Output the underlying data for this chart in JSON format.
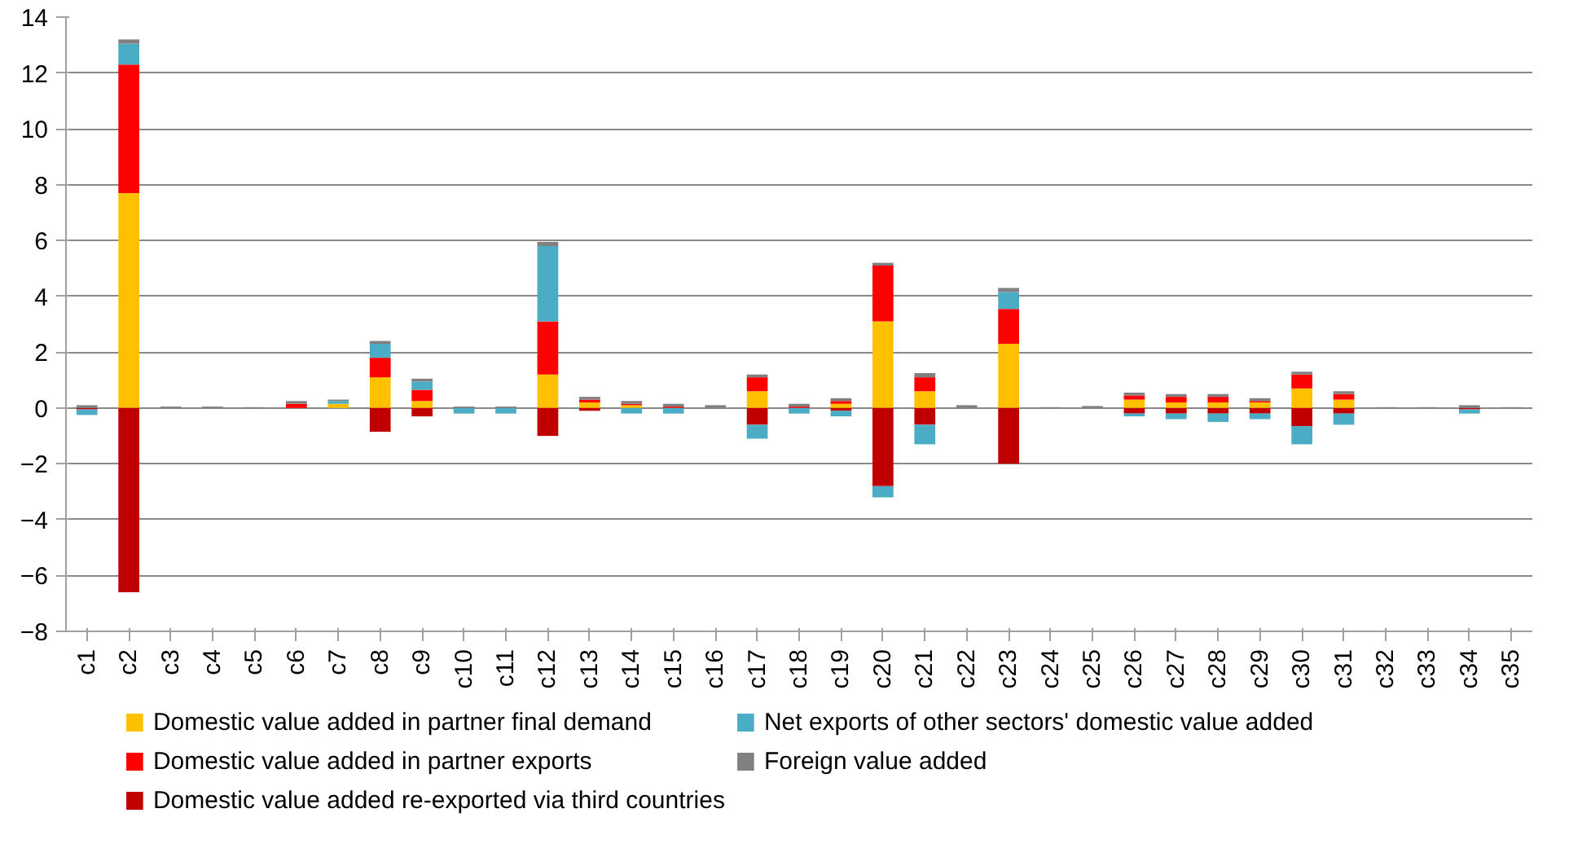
{
  "chart_data": {
    "type": "bar",
    "stacked": true,
    "grid": "y",
    "legend": "bottom",
    "ylim": [
      -8,
      14
    ],
    "yticks": [
      -8,
      -6,
      -4,
      -2,
      0,
      2,
      4,
      6,
      8,
      10,
      12,
      14
    ],
    "categories": [
      "c1",
      "c2",
      "c3",
      "c4",
      "c5",
      "c6",
      "c7",
      "c8",
      "c9",
      "c10",
      "c11",
      "c12",
      "c13",
      "c14",
      "c15",
      "c16",
      "c17",
      "c18",
      "c19",
      "c20",
      "c21",
      "c22",
      "c23",
      "c24",
      "c25",
      "c26",
      "c27",
      "c28",
      "c29",
      "c30",
      "c31",
      "c32",
      "c33",
      "c34",
      "c35"
    ],
    "series": [
      {
        "name": "Domestic value added in partner final demand",
        "color": "#ffc000",
        "values": [
          0,
          7.7,
          0,
          0,
          0,
          0,
          0.15,
          1.1,
          0.25,
          0,
          0,
          1.2,
          0.2,
          0.1,
          0,
          0,
          0.6,
          0,
          0.15,
          3.1,
          0.6,
          0,
          2.3,
          0,
          0,
          0.3,
          0.2,
          0.2,
          0.2,
          0.7,
          0.3,
          0,
          0,
          0,
          0
        ]
      },
      {
        "name": "Domestic value added in partner exports",
        "color": "#ff0000",
        "values": [
          0,
          4.6,
          0,
          0,
          0,
          0.15,
          0,
          0.7,
          0.4,
          0,
          0,
          1.9,
          0.1,
          0.05,
          0.05,
          0,
          0.5,
          0.05,
          0.1,
          2.0,
          0.5,
          0,
          1.25,
          0,
          0,
          0.15,
          0.2,
          0.2,
          0.05,
          0.5,
          0.2,
          0,
          0,
          0,
          0
        ]
      },
      {
        "name": "Domestic value added re-exported via third countries",
        "color": "#c00000",
        "values": [
          -0.05,
          -6.6,
          0,
          0,
          0,
          0,
          0,
          -0.85,
          -0.3,
          0,
          0,
          -1.0,
          -0.1,
          0,
          0,
          0,
          -0.6,
          0,
          -0.1,
          -2.8,
          -0.6,
          0,
          -2.0,
          0,
          0,
          -0.2,
          -0.2,
          -0.2,
          -0.2,
          -0.65,
          -0.2,
          0,
          0,
          -0.05,
          0
        ]
      },
      {
        "name": "Net exports of other sectors' domestic value added",
        "color": "#4bacc6",
        "values": [
          -0.2,
          0.75,
          0,
          0,
          0,
          0,
          0.1,
          0.5,
          0.3,
          -0.2,
          -0.2,
          2.7,
          0,
          -0.2,
          -0.2,
          0,
          -0.5,
          -0.2,
          -0.2,
          -0.4,
          -0.7,
          0,
          0.6,
          0,
          0,
          -0.1,
          -0.2,
          -0.3,
          -0.2,
          -0.65,
          -0.4,
          0,
          0,
          -0.15,
          0
        ]
      },
      {
        "name": "Foreign value added",
        "color": "#808080",
        "values": [
          0.1,
          0.15,
          0.05,
          0.05,
          0.03,
          0.1,
          0.05,
          0.1,
          0.1,
          0.05,
          0.05,
          0.15,
          0.1,
          0.1,
          0.1,
          0.1,
          0.1,
          0.1,
          0.1,
          0.1,
          0.15,
          0.1,
          0.15,
          0.03,
          0.07,
          0.1,
          0.1,
          0.1,
          0.1,
          0.1,
          0.1,
          0.03,
          0.03,
          0.1,
          0.03
        ]
      }
    ]
  }
}
